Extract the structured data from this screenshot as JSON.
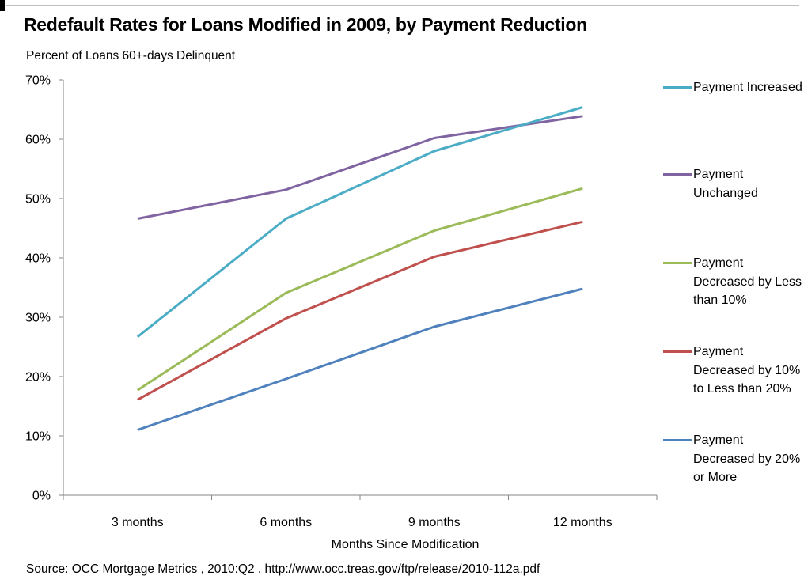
{
  "chart_data": {
    "type": "line",
    "title": "Redefault Rates for Loans Modified in 2009, by Payment Reduction",
    "ylabel": "Percent of Loans 60+-days Delinquent",
    "xlabel": "Months Since Modification",
    "categories": [
      "3 months",
      "6 months",
      "9 months",
      "12 months"
    ],
    "ylim": [
      0,
      70
    ],
    "yticks": [
      "0%",
      "10%",
      "20%",
      "30%",
      "40%",
      "50%",
      "60%",
      "70%"
    ],
    "grid": false,
    "legend_position": "right",
    "series": [
      {
        "name": "Payment Increased",
        "color": "#4bacc6",
        "values": [
          26.7,
          46.6,
          58.0,
          65.4
        ]
      },
      {
        "name": "Payment Unchanged",
        "color": "#8064a2",
        "values": [
          46.6,
          51.5,
          60.2,
          63.9
        ]
      },
      {
        "name": "Payment Decreased by Less than 10%",
        "color": "#9bbb59",
        "values": [
          17.7,
          34.1,
          44.6,
          51.7
        ]
      },
      {
        "name": "Payment Decreased by 10% to Less than 20%",
        "color": "#c0504d",
        "values": [
          16.1,
          29.8,
          40.2,
          46.1
        ]
      },
      {
        "name": "Payment Decreased by 20% or More",
        "color": "#4f81bd",
        "values": [
          11.0,
          19.6,
          28.4,
          34.8
        ]
      }
    ],
    "source": "Source: OCC Mortgage Metrics , 2010:Q2 . http://www.occ.treas.gov/ftp/release/2010-112a.pdf"
  }
}
